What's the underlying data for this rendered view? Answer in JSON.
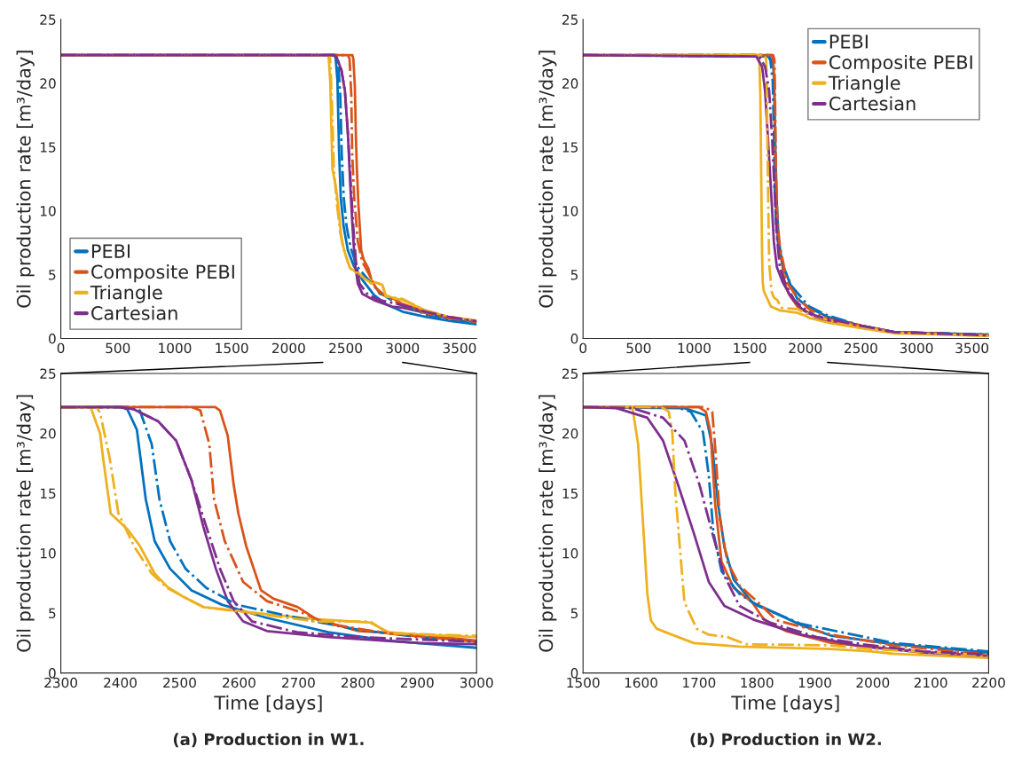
{
  "chart_data": [
    {
      "type": "line",
      "ylabel": "Oil production rate [m³/day]",
      "xlim": [
        0,
        3650
      ],
      "xticks": [
        0,
        500,
        1000,
        1500,
        2000,
        2500,
        3000,
        3500
      ],
      "ylim": [
        0,
        25
      ],
      "yticks": [
        0,
        5,
        10,
        15,
        20,
        25
      ],
      "legend": "bottom left",
      "series": [
        {
          "name": "PEBI",
          "color": "#0072bd",
          "line_style": "solid",
          "x": [
            0,
            2400,
            2412,
            2428,
            2443,
            2458,
            2484,
            2520,
            2571,
            2647,
            2750,
            2852,
            3000,
            3200,
            3400,
            3650
          ],
          "values": [
            22.2,
            22.2,
            22.0,
            20.3,
            14.5,
            11.0,
            8.7,
            6.9,
            5.7,
            4.6,
            3.4,
            2.7,
            2.1,
            1.7,
            1.4,
            1.1
          ]
        },
        {
          "name": "Composite PEBI",
          "color": "#d95319",
          "line_style": "solid",
          "x": [
            0,
            2560,
            2568,
            2581,
            2591,
            2599,
            2612,
            2637,
            2658,
            2699,
            2730,
            2801,
            2903,
            3000,
            3200,
            3400,
            3650
          ],
          "values": [
            22.2,
            22.2,
            21.9,
            19.8,
            15.7,
            13.3,
            10.6,
            6.9,
            6.2,
            5.5,
            4.5,
            3.5,
            3.2,
            2.7,
            2.1,
            1.7,
            1.3
          ]
        },
        {
          "name": "Triangle",
          "color": "#edb120",
          "line_style": "solid",
          "x": [
            0,
            2350,
            2366,
            2371,
            2384,
            2412,
            2433,
            2458,
            2479,
            2505,
            2540,
            2596,
            2647,
            2729,
            2821,
            2852,
            2903,
            3000,
            3200,
            3400,
            3650
          ],
          "values": [
            22.2,
            22.2,
            20.0,
            18.0,
            13.3,
            12.0,
            10.6,
            8.3,
            7.2,
            6.4,
            5.5,
            5.2,
            4.9,
            4.5,
            4.2,
            3.4,
            3.2,
            3.0,
            2.2,
            1.7,
            1.4
          ]
        },
        {
          "name": "Cartesian",
          "color": "#7e2f8e",
          "line_style": "solid",
          "x": [
            0,
            2400,
            2423,
            2464,
            2494,
            2520,
            2540,
            2561,
            2581,
            2607,
            2647,
            2750,
            2903,
            3000,
            3200,
            3400,
            3650
          ],
          "values": [
            22.2,
            22.2,
            22.0,
            21.0,
            19.4,
            16.1,
            12.2,
            8.7,
            6.0,
            4.3,
            3.5,
            3.0,
            2.5,
            2.4,
            2.0,
            1.6,
            1.35
          ]
        },
        {
          "color": "#0072bd",
          "line_style": "dashdot",
          "x": [
            0,
            2420,
            2433,
            2453,
            2466,
            2484,
            2510,
            2545,
            2596,
            2698,
            2801,
            2903,
            3000,
            3200,
            3400,
            3650
          ],
          "values": [
            22.2,
            22.2,
            21.9,
            19.1,
            14.5,
            11.0,
            8.7,
            7.1,
            5.7,
            4.6,
            3.6,
            3.0,
            2.6,
            1.9,
            1.5,
            1.2
          ]
        },
        {
          "color": "#d95319",
          "line_style": "dashdot",
          "x": [
            0,
            2520,
            2535,
            2550,
            2558,
            2576,
            2607,
            2647,
            2708,
            2749,
            2852,
            3000,
            3200,
            3400,
            3650
          ],
          "values": [
            22.2,
            22.2,
            21.9,
            19.1,
            14.5,
            11.0,
            7.6,
            6.0,
            5.0,
            4.1,
            3.3,
            2.6,
            2.0,
            1.6,
            1.3
          ]
        },
        {
          "color": "#edb120",
          "line_style": "dashdot",
          "x": [
            0,
            2360,
            2366,
            2382,
            2397,
            2423,
            2453,
            2479,
            2505,
            2540,
            2729,
            2821,
            2852,
            3000,
            3200,
            3400,
            3650
          ],
          "values": [
            22.2,
            22.2,
            21.7,
            18.0,
            13.3,
            10.6,
            8.3,
            7.1,
            6.4,
            5.5,
            4.3,
            4.3,
            3.3,
            3.1,
            2.2,
            1.7,
            1.4
          ]
        },
        {
          "color": "#7e2f8e",
          "line_style": "dashdot",
          "x": [
            0,
            2400,
            2423,
            2464,
            2494,
            2520,
            2545,
            2568,
            2591,
            2622,
            2698,
            2801,
            3000,
            3200,
            3400,
            3650
          ],
          "values": [
            22.2,
            22.2,
            22.0,
            21.0,
            19.4,
            16.1,
            12.2,
            8.7,
            6.0,
            4.3,
            3.4,
            3.0,
            2.6,
            2.1,
            1.7,
            1.35
          ]
        }
      ]
    },
    {
      "type": "line",
      "ylabel": "Oil production rate [m³/day]",
      "xlim": [
        0,
        3650
      ],
      "xticks": [
        0,
        500,
        1000,
        1500,
        2000,
        2500,
        3000,
        3500
      ],
      "ylim": [
        0,
        25
      ],
      "yticks": [
        0,
        5,
        10,
        15,
        20,
        25
      ],
      "legend": "top right",
      "series": [
        {
          "name": "PEBI",
          "color": "#0072bd",
          "line_style": "solid",
          "x": [
            0,
            1675,
            1712,
            1723,
            1733,
            1744,
            1760,
            1792,
            1823,
            1876,
            1929,
            2036,
            2200,
            2500,
            2800,
            3650
          ],
          "values": [
            22.2,
            22.1,
            21.5,
            18.9,
            14.1,
            10.5,
            7.8,
            5.9,
            5.2,
            4.0,
            3.1,
            2.4,
            1.7,
            1.0,
            0.5,
            0.3
          ]
        },
        {
          "name": "Composite PEBI",
          "color": "#d95319",
          "line_style": "solid",
          "x": [
            0,
            1700,
            1712,
            1720,
            1728,
            1739,
            1760,
            1792,
            1813,
            1850,
            1929,
            2036,
            2200,
            2500,
            2800,
            3650
          ],
          "values": [
            22.2,
            22.2,
            21.8,
            20.1,
            14.1,
            9.3,
            7.1,
            5.9,
            4.4,
            3.5,
            2.5,
            2.0,
            1.3,
            1.0,
            0.5,
            0.25
          ]
        },
        {
          "name": "Triangle",
          "color": "#edb120",
          "line_style": "solid",
          "x": [
            0,
            1585,
            1595,
            1603,
            1611,
            1617,
            1627,
            1664,
            1691,
            1770,
            1929,
            1998,
            2036,
            2200,
            2500,
            2800,
            3650
          ],
          "values": [
            22.2,
            22.2,
            19.1,
            12.9,
            6.6,
            4.4,
            3.7,
            3.0,
            2.5,
            2.2,
            2.0,
            1.8,
            1.6,
            1.25,
            0.8,
            0.4,
            0.2
          ]
        },
        {
          "name": "Cartesian",
          "color": "#7e2f8e",
          "line_style": "solid",
          "x": [
            0,
            1558,
            1611,
            1638,
            1664,
            1691,
            1717,
            1744,
            1797,
            1876,
            1982,
            2088,
            2200,
            2500,
            2800,
            3650
          ],
          "values": [
            22.2,
            22.1,
            21.3,
            19.4,
            15.7,
            11.7,
            7.6,
            5.6,
            4.4,
            3.2,
            2.2,
            1.7,
            1.45,
            1.0,
            0.5,
            0.25
          ]
        },
        {
          "color": "#0072bd",
          "line_style": "dashdot",
          "x": [
            0,
            1660,
            1686,
            1707,
            1717,
            1725,
            1739,
            1770,
            1802,
            1876,
            2036,
            2200,
            2500,
            2800,
            3650
          ],
          "values": [
            22.2,
            22.2,
            21.8,
            20.1,
            16.5,
            11.7,
            8.5,
            6.6,
            5.6,
            4.1,
            2.5,
            1.8,
            1.0,
            0.5,
            0.3
          ]
        },
        {
          "color": "#d95319",
          "line_style": "dashdot",
          "x": [
            0,
            1710,
            1723,
            1728,
            1736,
            1749,
            1770,
            1802,
            1834,
            1929,
            2036,
            2200,
            2500,
            2800,
            3650
          ],
          "values": [
            22.2,
            22.2,
            21.8,
            18.9,
            12.9,
            9.3,
            7.3,
            5.9,
            4.4,
            3.2,
            2.3,
            1.55,
            1.0,
            0.5,
            0.25
          ]
        },
        {
          "color": "#edb120",
          "line_style": "dashdot",
          "x": [
            0,
            1635,
            1648,
            1654,
            1659,
            1667,
            1675,
            1696,
            1717,
            1749,
            1781,
            1929,
            1998,
            2200,
            2500,
            2800,
            3650
          ],
          "values": [
            22.2,
            22.2,
            21.8,
            20.1,
            15.3,
            10.5,
            5.9,
            3.7,
            3.2,
            3.0,
            2.4,
            2.3,
            2.0,
            1.45,
            0.9,
            0.45,
            0.2
          ]
        },
        {
          "color": "#7e2f8e",
          "line_style": "dashdot",
          "x": [
            0,
            1585,
            1638,
            1675,
            1701,
            1723,
            1744,
            1770,
            1823,
            1903,
            1982,
            2088,
            2200,
            2500,
            2800,
            3650
          ],
          "values": [
            22.2,
            22.1,
            21.3,
            19.4,
            15.7,
            11.7,
            8.1,
            5.6,
            4.2,
            3.0,
            2.4,
            1.8,
            1.55,
            1.0,
            0.5,
            0.25
          ]
        }
      ]
    },
    {
      "type": "line",
      "xlabel": "Time [days]",
      "ylabel": "Oil production rate [m³/day]",
      "xlim": [
        2300,
        3000
      ],
      "xticks": [
        2300,
        2400,
        2500,
        2600,
        2700,
        2800,
        2900,
        3000
      ],
      "ylim": [
        0,
        25
      ],
      "yticks": [
        0,
        5,
        10,
        15,
        20,
        25
      ],
      "annotations": [
        "(a) Production in W1."
      ],
      "series": [
        {
          "color": "#0072bd",
          "line_style": "solid",
          "x": [
            2300,
            2400,
            2412,
            2428,
            2443,
            2458,
            2484,
            2520,
            2571,
            2647,
            2750,
            2852,
            3000
          ],
          "values": [
            22.2,
            22.2,
            22.0,
            20.3,
            14.5,
            11.0,
            8.7,
            6.9,
            5.7,
            4.6,
            3.4,
            2.7,
            2.1
          ]
        },
        {
          "color": "#d95319",
          "line_style": "solid",
          "x": [
            2300,
            2560,
            2568,
            2581,
            2591,
            2599,
            2612,
            2637,
            2658,
            2699,
            2730,
            2801,
            2903,
            3000
          ],
          "values": [
            22.2,
            22.2,
            21.9,
            19.8,
            15.7,
            13.3,
            10.6,
            6.9,
            6.2,
            5.5,
            4.5,
            3.5,
            3.2,
            2.7
          ]
        },
        {
          "color": "#edb120",
          "line_style": "solid",
          "x": [
            2300,
            2350,
            2366,
            2371,
            2384,
            2412,
            2433,
            2458,
            2479,
            2505,
            2540,
            2596,
            2647,
            2729,
            2821,
            2852,
            2903,
            3000
          ],
          "values": [
            22.2,
            22.2,
            20.0,
            18.0,
            13.3,
            12.0,
            10.6,
            8.3,
            7.2,
            6.4,
            5.5,
            5.2,
            4.9,
            4.5,
            4.2,
            3.4,
            3.2,
            3.0
          ]
        },
        {
          "color": "#7e2f8e",
          "line_style": "solid",
          "x": [
            2300,
            2400,
            2423,
            2464,
            2494,
            2520,
            2540,
            2561,
            2581,
            2607,
            2647,
            2750,
            2903,
            3000
          ],
          "values": [
            22.2,
            22.2,
            22.0,
            21.0,
            19.4,
            16.1,
            12.2,
            8.7,
            6.0,
            4.3,
            3.5,
            3.0,
            2.5,
            2.4
          ]
        },
        {
          "color": "#0072bd",
          "line_style": "dashdot",
          "x": [
            2300,
            2420,
            2433,
            2453,
            2466,
            2484,
            2510,
            2545,
            2596,
            2698,
            2801,
            2903,
            3000
          ],
          "values": [
            22.2,
            22.2,
            21.9,
            19.1,
            14.5,
            11.0,
            8.7,
            7.1,
            5.7,
            4.6,
            3.6,
            3.0,
            2.6
          ]
        },
        {
          "color": "#d95319",
          "line_style": "dashdot",
          "x": [
            2300,
            2520,
            2535,
            2550,
            2558,
            2576,
            2607,
            2647,
            2708,
            2749,
            2852,
            3000
          ],
          "values": [
            22.2,
            22.2,
            21.9,
            19.1,
            14.5,
            11.0,
            7.6,
            6.0,
            5.0,
            4.1,
            3.3,
            2.6
          ]
        },
        {
          "color": "#edb120",
          "line_style": "dashdot",
          "x": [
            2300,
            2360,
            2366,
            2382,
            2397,
            2423,
            2453,
            2479,
            2505,
            2540,
            2729,
            2821,
            2852,
            3000
          ],
          "values": [
            22.2,
            22.2,
            21.7,
            18.0,
            13.3,
            10.6,
            8.3,
            7.1,
            6.4,
            5.5,
            4.3,
            4.3,
            3.3,
            3.1
          ]
        },
        {
          "color": "#7e2f8e",
          "line_style": "dashdot",
          "x": [
            2300,
            2400,
            2423,
            2464,
            2494,
            2520,
            2545,
            2568,
            2591,
            2622,
            2698,
            2801,
            3000
          ],
          "values": [
            22.2,
            22.2,
            22.0,
            21.0,
            19.4,
            16.1,
            12.2,
            8.7,
            6.0,
            4.3,
            3.4,
            3.0,
            2.6
          ]
        }
      ]
    },
    {
      "type": "line",
      "xlabel": "Time [days]",
      "ylabel": "Oil production rate [m³/day]",
      "xlim": [
        1500,
        2200
      ],
      "xticks": [
        1500,
        1600,
        1700,
        1800,
        1900,
        2000,
        2100,
        2200
      ],
      "ylim": [
        0,
        25
      ],
      "yticks": [
        0,
        5,
        10,
        15,
        20,
        25
      ],
      "annotations": [
        "(b) Production in W2."
      ],
      "series": [
        {
          "color": "#0072bd",
          "line_style": "solid",
          "x": [
            1500,
            1675,
            1712,
            1723,
            1733,
            1744,
            1760,
            1792,
            1823,
            1876,
            1929,
            2036,
            2200
          ],
          "values": [
            22.2,
            22.1,
            21.5,
            18.9,
            14.1,
            10.5,
            7.8,
            5.9,
            5.2,
            4.0,
            3.1,
            2.4,
            1.7
          ]
        },
        {
          "color": "#d95319",
          "line_style": "solid",
          "x": [
            1500,
            1700,
            1712,
            1720,
            1728,
            1739,
            1760,
            1792,
            1813,
            1850,
            1929,
            2036,
            2200
          ],
          "values": [
            22.2,
            22.2,
            21.8,
            20.1,
            14.1,
            9.3,
            7.1,
            5.9,
            4.4,
            3.5,
            2.5,
            2.0,
            1.3
          ]
        },
        {
          "color": "#edb120",
          "line_style": "solid",
          "x": [
            1500,
            1585,
            1595,
            1603,
            1611,
            1617,
            1627,
            1664,
            1691,
            1770,
            1929,
            1998,
            2036,
            2200
          ],
          "values": [
            22.2,
            22.2,
            19.1,
            12.9,
            6.6,
            4.4,
            3.7,
            3.0,
            2.5,
            2.2,
            2.0,
            1.8,
            1.6,
            1.25
          ]
        },
        {
          "color": "#7e2f8e",
          "line_style": "solid",
          "x": [
            1500,
            1558,
            1611,
            1638,
            1664,
            1691,
            1717,
            1744,
            1797,
            1876,
            1982,
            2088,
            2200
          ],
          "values": [
            22.2,
            22.1,
            21.3,
            19.4,
            15.7,
            11.7,
            7.6,
            5.6,
            4.4,
            3.2,
            2.2,
            1.7,
            1.45
          ]
        },
        {
          "color": "#0072bd",
          "line_style": "dashdot",
          "x": [
            1500,
            1660,
            1686,
            1707,
            1717,
            1725,
            1739,
            1770,
            1802,
            1876,
            2036,
            2200
          ],
          "values": [
            22.2,
            22.2,
            21.8,
            20.1,
            16.5,
            11.7,
            8.5,
            6.6,
            5.6,
            4.1,
            2.5,
            1.8
          ]
        },
        {
          "color": "#d95319",
          "line_style": "dashdot",
          "x": [
            1500,
            1710,
            1723,
            1728,
            1736,
            1749,
            1770,
            1802,
            1834,
            1929,
            2036,
            2200
          ],
          "values": [
            22.2,
            22.2,
            21.8,
            18.9,
            12.9,
            9.3,
            7.3,
            5.9,
            4.4,
            3.2,
            2.3,
            1.55
          ]
        },
        {
          "color": "#edb120",
          "line_style": "dashdot",
          "x": [
            1500,
            1635,
            1648,
            1654,
            1659,
            1667,
            1675,
            1696,
            1717,
            1749,
            1781,
            1929,
            1998,
            2200
          ],
          "values": [
            22.2,
            22.2,
            21.8,
            20.1,
            15.3,
            10.5,
            5.9,
            3.7,
            3.2,
            3.0,
            2.4,
            2.3,
            2.0,
            1.45
          ]
        },
        {
          "color": "#7e2f8e",
          "line_style": "dashdot",
          "x": [
            1500,
            1585,
            1638,
            1675,
            1701,
            1723,
            1744,
            1770,
            1823,
            1903,
            1982,
            2088,
            2200
          ],
          "values": [
            22.2,
            22.1,
            21.3,
            19.4,
            15.7,
            11.7,
            8.1,
            5.6,
            4.2,
            3.0,
            2.4,
            1.8,
            1.55
          ]
        }
      ]
    }
  ]
}
